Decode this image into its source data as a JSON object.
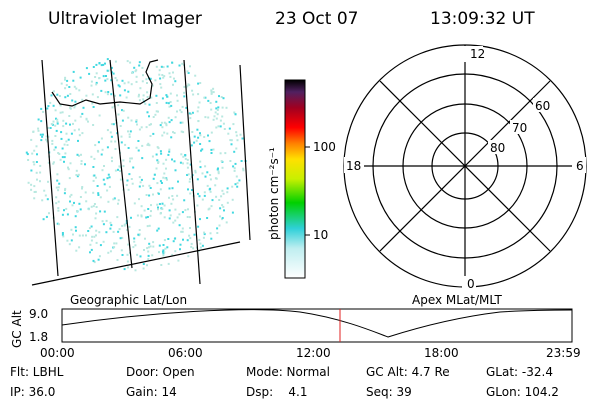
{
  "header": {
    "instrument": "Ultraviolet Imager",
    "date": "23 Oct 07",
    "time": "13:09:32 UT"
  },
  "colorbar": {
    "label": "photon cm⁻²s⁻¹",
    "ticks": [
      "100",
      "10"
    ]
  },
  "map": {
    "label": "Geographic Lat/Lon"
  },
  "polar": {
    "label": "Apex MLat/MLT",
    "mlt": [
      "12",
      "6",
      "0",
      "18"
    ],
    "mlat": [
      "60",
      "70",
      "80"
    ]
  },
  "timeline": {
    "axis_label": "GC Alt",
    "y_labels": [
      "9.0",
      "1.8"
    ],
    "x_labels": [
      "00:00",
      "06:00",
      "12:00",
      "18:00",
      "23:59"
    ]
  },
  "status": [
    [
      "Flt: LBHL",
      "Door: Open",
      "Mode: Normal",
      "GC Alt: 4.7 Re",
      "GLat: -32.4"
    ],
    [
      "IP: 36.0",
      "Gain: 14",
      "Dsp:    4.1",
      "Seq: 39",
      "GLon: 104.2"
    ]
  ]
}
